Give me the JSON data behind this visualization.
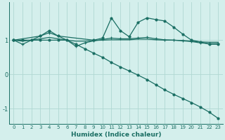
{
  "xlabel": "Humidex (Indice chaleur)",
  "background_color": "#d4efec",
  "grid_color": "#b0d8d2",
  "line_color": "#1a6e63",
  "xlim": [
    -0.5,
    23.5
  ],
  "ylim": [
    -1.45,
    2.1
  ],
  "xticks": [
    0,
    1,
    2,
    3,
    4,
    5,
    6,
    7,
    8,
    9,
    10,
    11,
    12,
    13,
    14,
    15,
    16,
    17,
    18,
    19,
    20,
    21,
    22,
    23
  ],
  "yticks": [
    -1,
    0,
    1
  ],
  "series": {
    "line1_x": [
      0,
      1,
      2,
      3,
      4,
      5,
      6,
      7,
      8,
      9,
      10,
      11,
      12,
      13,
      14,
      15,
      16,
      17,
      18,
      19,
      20,
      21,
      22,
      23
    ],
    "line1_y": [
      1.0,
      0.88,
      1.0,
      1.12,
      1.22,
      1.12,
      1.0,
      0.82,
      0.92,
      0.98,
      1.02,
      1.06,
      1.04,
      1.04,
      1.06,
      1.08,
      1.04,
      1.01,
      1.0,
      0.98,
      0.96,
      0.92,
      0.9,
      0.9
    ],
    "line2_x": [
      0,
      3,
      4,
      5,
      9,
      10,
      11,
      12,
      13,
      14,
      15,
      16,
      17,
      18,
      19,
      20,
      21,
      22,
      23
    ],
    "line2_y": [
      1.0,
      1.12,
      1.28,
      1.12,
      1.0,
      1.06,
      1.65,
      1.28,
      1.1,
      1.52,
      1.65,
      1.6,
      1.56,
      1.38,
      1.18,
      1.0,
      0.95,
      0.88,
      0.88
    ],
    "line3_x": [
      0,
      1,
      2,
      3,
      4,
      5,
      6,
      7,
      8,
      9,
      10,
      11,
      12,
      13,
      14,
      15,
      16,
      17,
      18,
      19,
      20,
      21,
      22,
      23
    ],
    "line3_y": [
      1.0,
      0.97,
      1.0,
      1.04,
      1.08,
      1.04,
      1.0,
      0.97,
      0.97,
      0.99,
      1.0,
      1.01,
      1.01,
      1.01,
      1.03,
      1.03,
      1.01,
      1.0,
      1.0,
      0.99,
      0.97,
      0.95,
      0.94,
      0.94
    ],
    "line4_x": [
      0,
      1,
      2,
      3,
      4,
      5,
      6,
      7,
      8,
      9,
      10,
      11,
      12,
      13,
      14,
      15,
      16,
      17,
      18,
      19,
      20,
      21,
      22,
      23
    ],
    "line4_y": [
      1.0,
      1.0,
      1.0,
      1.0,
      1.0,
      1.0,
      1.0,
      0.88,
      0.75,
      0.62,
      0.5,
      0.35,
      0.22,
      0.1,
      -0.02,
      -0.15,
      -0.3,
      -0.45,
      -0.58,
      -0.7,
      -0.82,
      -0.95,
      -1.1,
      -1.28
    ]
  }
}
